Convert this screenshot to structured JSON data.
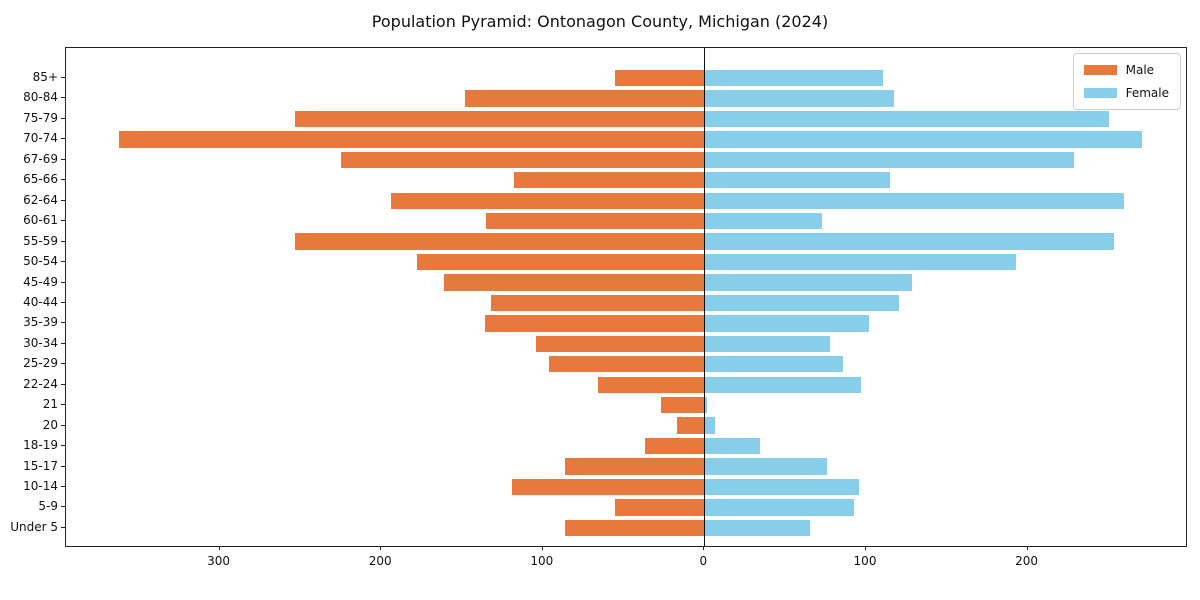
{
  "title": "Population Pyramid: Ontonagon County, Michigan (2024)",
  "legend": {
    "male_label": "Male",
    "female_label": "Female"
  },
  "colors": {
    "male": "#e8793d",
    "female": "#87ceeb",
    "axis": "#222222",
    "text": "#111111"
  },
  "chart_data": {
    "type": "bar",
    "subtype": "population-pyramid",
    "title": "Population Pyramid: Ontonagon County, Michigan (2024)",
    "orientation": "horizontal",
    "categories_top_to_bottom": [
      "85+",
      "80-84",
      "75-79",
      "70-74",
      "67-69",
      "65-66",
      "62-64",
      "60-61",
      "55-59",
      "50-54",
      "45-49",
      "40-44",
      "35-39",
      "30-34",
      "25-29",
      "22-24",
      "21",
      "20",
      "18-19",
      "15-17",
      "10-14",
      "5-9",
      "Under 5"
    ],
    "series": [
      {
        "name": "Male",
        "side": "left",
        "color": "#e8793d",
        "values": [
          55,
          148,
          253,
          362,
          225,
          118,
          194,
          135,
          253,
          178,
          161,
          132,
          136,
          104,
          96,
          66,
          27,
          17,
          37,
          86,
          119,
          55,
          86
        ]
      },
      {
        "name": "Female",
        "side": "right",
        "color": "#87ceeb",
        "values": [
          110,
          117,
          250,
          270,
          228,
          114,
          259,
          72,
          253,
          192,
          128,
          120,
          101,
          77,
          85,
          96,
          1,
          6,
          34,
          75,
          95,
          92,
          65
        ]
      }
    ],
    "x_tick_values": [
      -300,
      -200,
      -100,
      0,
      100,
      200
    ],
    "x_tick_labels": [
      "300",
      "200",
      "100",
      "0",
      "100",
      "200"
    ],
    "xlim": [
      -395,
      298
    ],
    "grid": false,
    "zero_line": true,
    "legend_position": "upper right"
  }
}
